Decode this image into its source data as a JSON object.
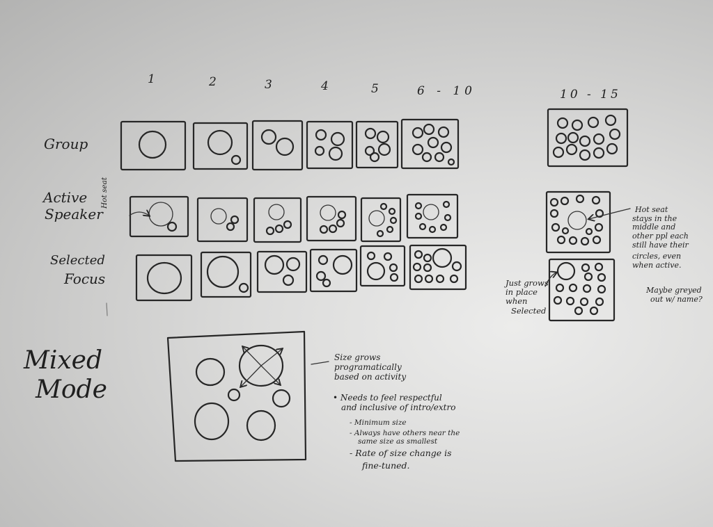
{
  "whiteboard": {
    "columns": [
      "1",
      "2",
      "3",
      "4",
      "5",
      "6 - 10",
      "10 - 15"
    ],
    "rows": {
      "group": "Group",
      "active_speaker": [
        "Active",
        "Speaker"
      ],
      "hot_seat_tag": "Hot seat",
      "selected_focus": [
        "Selected",
        "Focus"
      ]
    },
    "mixed_mode": [
      "Mixed",
      "Mode"
    ],
    "mixed_notes": {
      "size_grows": [
        "Size grows",
        "programatically",
        "based on activity"
      ],
      "needs": [
        "• Needs to feel respectful",
        "and inclusive of intro/extro"
      ],
      "sub_items": [
        "- Minimum size",
        "- Always have others near the",
        "same size as smallest",
        "- Rate of size change is",
        "fine-tuned."
      ]
    },
    "hot_seat_note": [
      "Hot seat",
      "stays in the",
      "middle and",
      "other ppl each",
      "still have their",
      "circles, even",
      "when active."
    ],
    "maybe_note": [
      "Maybe greyed",
      "out w/ name?"
    ],
    "just_grows_note": [
      "Just grows",
      "in place",
      "when",
      "Selected"
    ]
  }
}
